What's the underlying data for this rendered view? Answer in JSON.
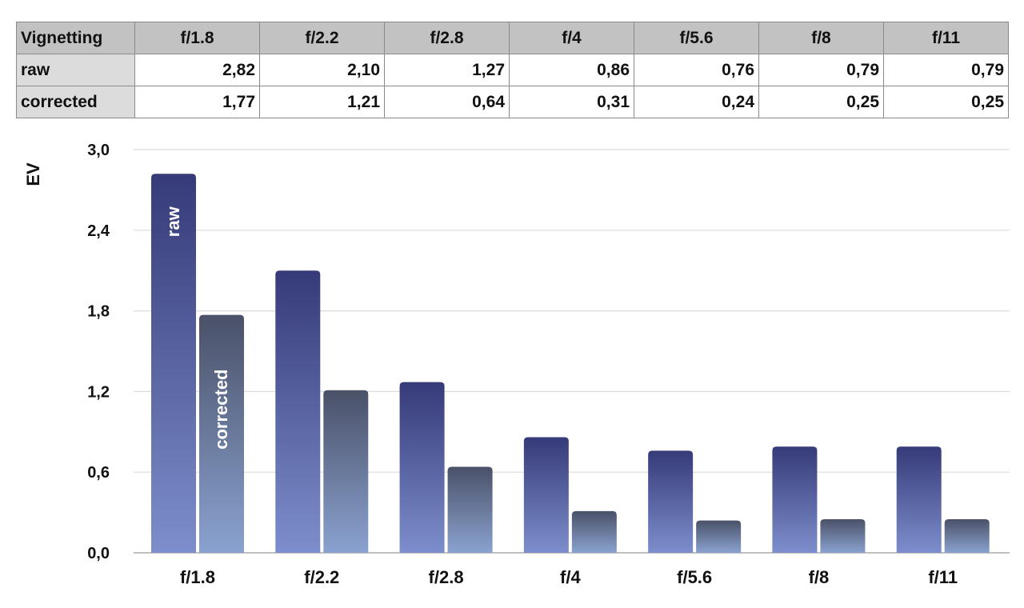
{
  "table": {
    "header_label": "Vignetting",
    "columns": [
      "f/1.8",
      "f/2.2",
      "f/2.8",
      "f/4",
      "f/5.6",
      "f/8",
      "f/11"
    ],
    "rows": [
      {
        "label": "raw",
        "values": [
          "2,82",
          "2,10",
          "1,27",
          "0,86",
          "0,76",
          "0,79",
          "0,79"
        ]
      },
      {
        "label": "corrected",
        "values": [
          "1,77",
          "1,21",
          "0,64",
          "0,31",
          "0,24",
          "0,25",
          "0,25"
        ]
      }
    ]
  },
  "chart_data": {
    "type": "bar",
    "categories": [
      "f/1.8",
      "f/2.2",
      "f/2.8",
      "f/4",
      "f/5.6",
      "f/8",
      "f/11"
    ],
    "series": [
      {
        "name": "raw",
        "values": [
          2.82,
          2.1,
          1.27,
          0.86,
          0.76,
          0.79,
          0.79
        ]
      },
      {
        "name": "corrected",
        "values": [
          1.77,
          1.21,
          0.64,
          0.31,
          0.24,
          0.25,
          0.25
        ]
      }
    ],
    "ylabel": "EV",
    "ylim": [
      0,
      3.0
    ],
    "yticks": [
      0.0,
      0.6,
      1.2,
      1.8,
      2.4,
      3.0
    ],
    "ytick_labels": [
      "0,0",
      "0,6",
      "1,2",
      "1,8",
      "2,4",
      "3,0"
    ],
    "grid": true,
    "legend": "inline labels inside first bars",
    "colors": {
      "raw_top": "#363a78",
      "raw_bottom": "#7d8ecc",
      "corrected_top": "#4a5168",
      "corrected_bottom": "#8aa2d0",
      "grid": "#dcdcdc"
    }
  }
}
